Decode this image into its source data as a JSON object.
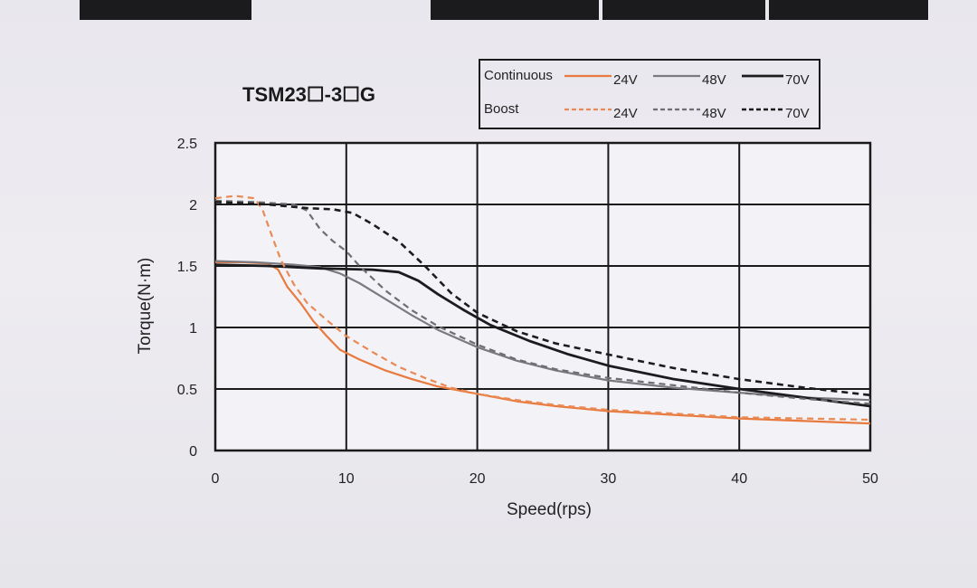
{
  "colors": {
    "orange": "#e87a3e",
    "light_orange": "#e98a55",
    "gray": "#7a7a80",
    "dark_gray": "#555558",
    "black": "#1c1c1e",
    "grid": "#1a1a1a",
    "panel": "#f3f2f7"
  },
  "chart_data": {
    "type": "line",
    "title": "TSM23☐-3☐G",
    "xlabel": "Speed(rps)",
    "ylabel": "Torque(N·m)",
    "xlim": [
      0,
      50
    ],
    "ylim": [
      0,
      2.5
    ],
    "x_ticks": [
      0,
      10,
      20,
      30,
      40,
      50
    ],
    "y_ticks": [
      0,
      0.5,
      1,
      1.5,
      2,
      2.5
    ],
    "x_tick_labels": [
      "0",
      "10",
      "20",
      "30",
      "40",
      "50"
    ],
    "y_tick_labels": [
      "0",
      "0.5",
      "1",
      "1.5",
      "2",
      "2.5"
    ],
    "grid": true,
    "legend": {
      "placement": "top-right",
      "rows": [
        {
          "label": "Continuous",
          "entries": [
            {
              "text": "24V",
              "series": "cont_24"
            },
            {
              "text": "48V",
              "series": "cont_48"
            },
            {
              "text": "70V",
              "series": "cont_70"
            }
          ]
        },
        {
          "label": "Boost",
          "entries": [
            {
              "text": "24V",
              "series": "boost_24"
            },
            {
              "text": "48V",
              "series": "boost_48"
            },
            {
              "text": "70V",
              "series": "boost_70"
            }
          ]
        }
      ]
    },
    "series": [
      {
        "id": "cont_24",
        "style": "solid",
        "color": "#e87a3e",
        "width": 2.2,
        "points": [
          [
            0,
            1.53
          ],
          [
            2,
            1.53
          ],
          [
            4,
            1.52
          ],
          [
            4.8,
            1.47
          ],
          [
            5.5,
            1.33
          ],
          [
            6.5,
            1.2
          ],
          [
            7.5,
            1.05
          ],
          [
            8.5,
            0.93
          ],
          [
            9.5,
            0.82
          ],
          [
            11,
            0.74
          ],
          [
            13,
            0.65
          ],
          [
            15,
            0.58
          ],
          [
            17,
            0.52
          ],
          [
            20,
            0.46
          ],
          [
            23,
            0.4
          ],
          [
            26,
            0.36
          ],
          [
            30,
            0.32
          ],
          [
            35,
            0.29
          ],
          [
            40,
            0.26
          ],
          [
            45,
            0.24
          ],
          [
            50,
            0.22
          ]
        ]
      },
      {
        "id": "cont_48",
        "style": "solid",
        "color": "#7a7a80",
        "width": 2.2,
        "points": [
          [
            0,
            1.54
          ],
          [
            3,
            1.53
          ],
          [
            6,
            1.51
          ],
          [
            8,
            1.49
          ],
          [
            9.5,
            1.44
          ],
          [
            11,
            1.36
          ],
          [
            13,
            1.23
          ],
          [
            15,
            1.1
          ],
          [
            17,
            0.98
          ],
          [
            20,
            0.84
          ],
          [
            23,
            0.73
          ],
          [
            26,
            0.65
          ],
          [
            30,
            0.57
          ],
          [
            35,
            0.51
          ],
          [
            40,
            0.47
          ],
          [
            45,
            0.43
          ],
          [
            50,
            0.41
          ]
        ]
      },
      {
        "id": "cont_70",
        "style": "solid",
        "color": "#1c1c1e",
        "width": 2.8,
        "points": [
          [
            0,
            1.51
          ],
          [
            4,
            1.5
          ],
          [
            8,
            1.48
          ],
          [
            12,
            1.47
          ],
          [
            14,
            1.45
          ],
          [
            15.5,
            1.38
          ],
          [
            17,
            1.27
          ],
          [
            19,
            1.14
          ],
          [
            21,
            1.02
          ],
          [
            24,
            0.89
          ],
          [
            27,
            0.78
          ],
          [
            30,
            0.69
          ],
          [
            35,
            0.58
          ],
          [
            40,
            0.5
          ],
          [
            45,
            0.43
          ],
          [
            50,
            0.36
          ]
        ]
      },
      {
        "id": "boost_24",
        "style": "dashed",
        "color": "#e98a55",
        "width": 2.2,
        "points": [
          [
            0,
            2.05
          ],
          [
            1.5,
            2.07
          ],
          [
            3,
            2.05
          ],
          [
            3.6,
            1.96
          ],
          [
            4.3,
            1.75
          ],
          [
            5,
            1.55
          ],
          [
            6,
            1.35
          ],
          [
            7,
            1.2
          ],
          [
            8.5,
            1.06
          ],
          [
            10,
            0.93
          ],
          [
            12,
            0.8
          ],
          [
            14,
            0.68
          ],
          [
            16,
            0.59
          ],
          [
            18,
            0.51
          ],
          [
            20,
            0.46
          ],
          [
            23,
            0.41
          ],
          [
            26,
            0.37
          ],
          [
            30,
            0.33
          ],
          [
            35,
            0.3
          ],
          [
            40,
            0.27
          ],
          [
            45,
            0.26
          ],
          [
            50,
            0.25
          ]
        ]
      },
      {
        "id": "boost_48",
        "style": "dashed",
        "color": "#6e6e72",
        "width": 2.2,
        "points": [
          [
            0,
            2.03
          ],
          [
            3,
            2.02
          ],
          [
            6,
            2.0
          ],
          [
            7,
            1.95
          ],
          [
            8,
            1.8
          ],
          [
            9,
            1.7
          ],
          [
            10,
            1.62
          ],
          [
            11,
            1.5
          ],
          [
            13,
            1.3
          ],
          [
            15,
            1.14
          ],
          [
            17,
            1.01
          ],
          [
            20,
            0.86
          ],
          [
            23,
            0.74
          ],
          [
            26,
            0.66
          ],
          [
            30,
            0.59
          ],
          [
            35,
            0.53
          ],
          [
            40,
            0.47
          ],
          [
            45,
            0.42
          ],
          [
            50,
            0.38
          ]
        ]
      },
      {
        "id": "boost_70",
        "style": "dashed",
        "color": "#1c1c1e",
        "width": 2.6,
        "points": [
          [
            0,
            2.02
          ],
          [
            4,
            2.0
          ],
          [
            7,
            1.97
          ],
          [
            9,
            1.96
          ],
          [
            10.5,
            1.93
          ],
          [
            12,
            1.84
          ],
          [
            14,
            1.7
          ],
          [
            16,
            1.5
          ],
          [
            18,
            1.28
          ],
          [
            20,
            1.12
          ],
          [
            23,
            0.97
          ],
          [
            26,
            0.87
          ],
          [
            30,
            0.78
          ],
          [
            35,
            0.67
          ],
          [
            40,
            0.58
          ],
          [
            45,
            0.51
          ],
          [
            50,
            0.45
          ]
        ]
      }
    ]
  }
}
